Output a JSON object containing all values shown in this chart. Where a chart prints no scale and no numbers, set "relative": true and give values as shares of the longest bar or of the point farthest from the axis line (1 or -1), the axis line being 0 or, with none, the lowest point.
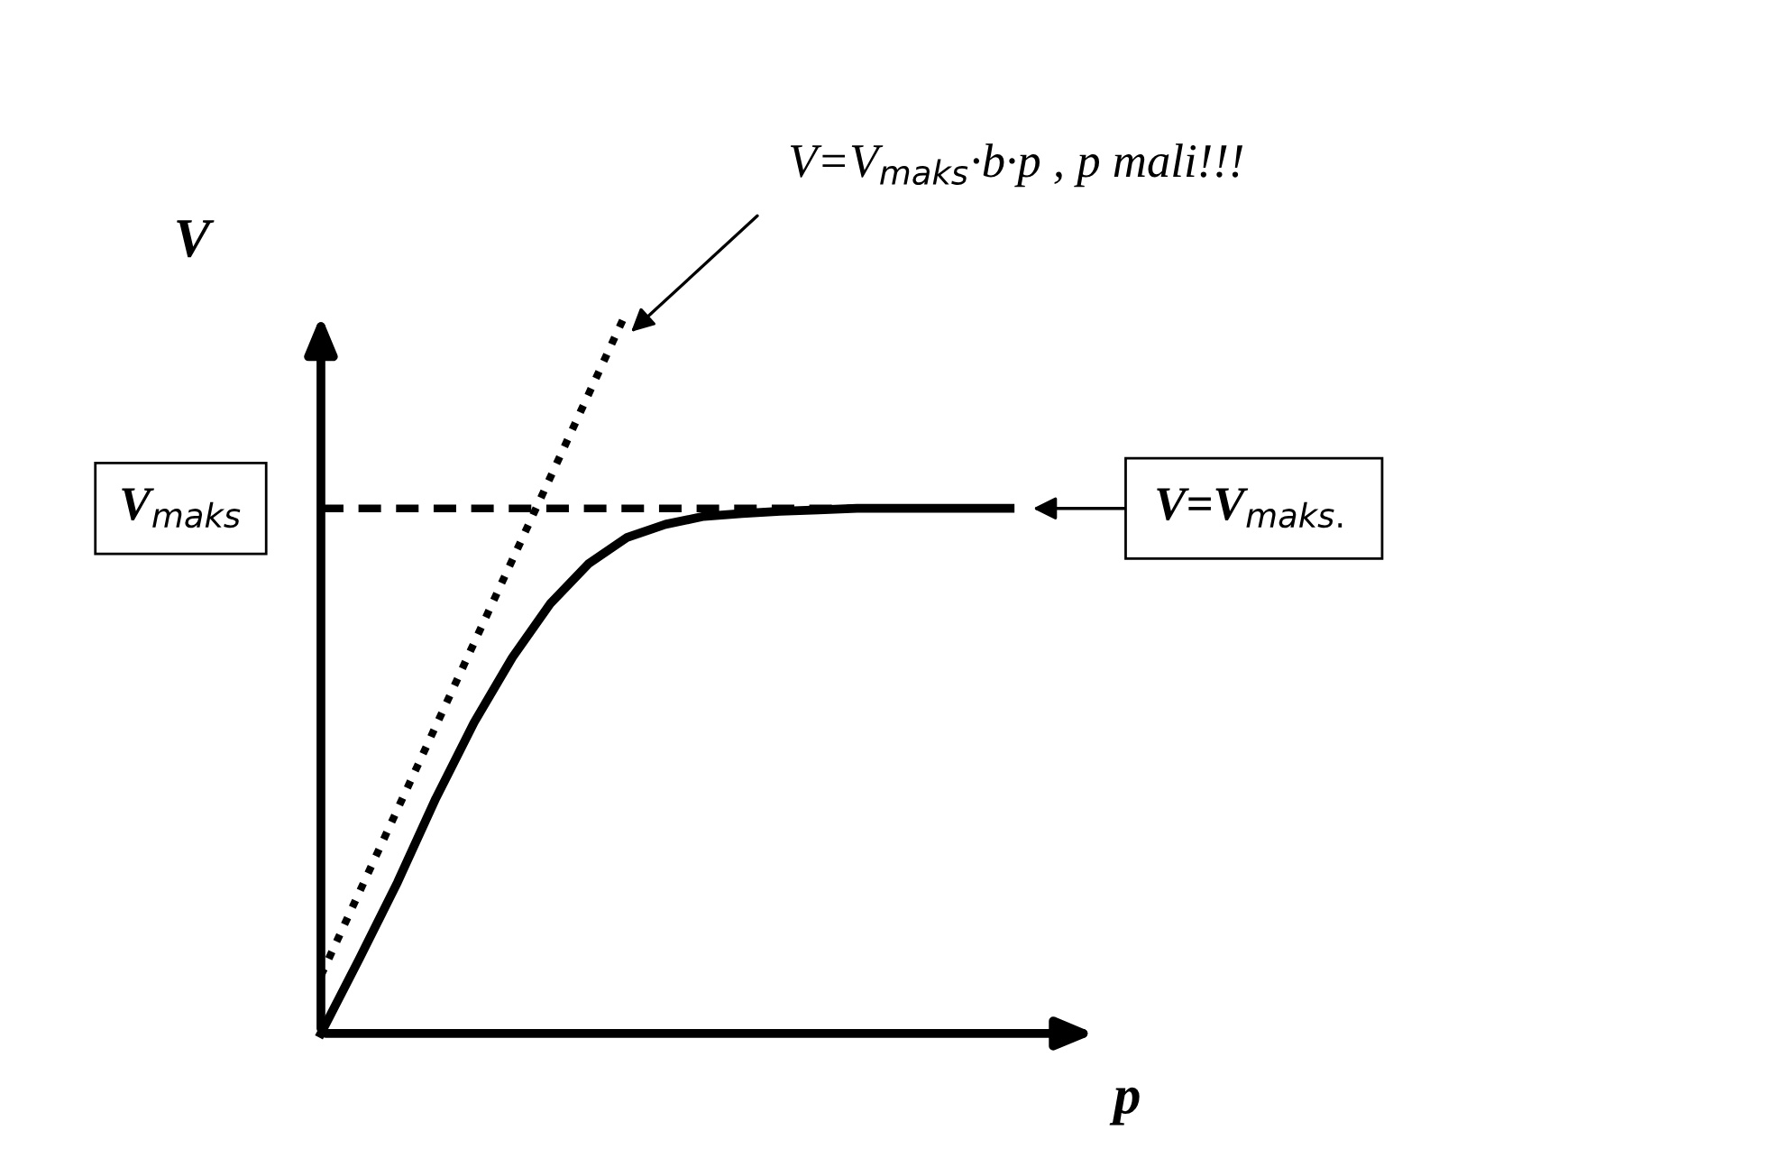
{
  "chart_data": {
    "type": "line",
    "relative": true,
    "xlabel": "p",
    "ylabel": "V",
    "categories": [
      null,
      null,
      null,
      null,
      null,
      null,
      null,
      null,
      null,
      null,
      null,
      null,
      null,
      null,
      null,
      null,
      null,
      null,
      null
    ],
    "series": [
      {
        "values": [
          0,
          0.103,
          0.209,
          0.325,
          0.43,
          0.52,
          0.595,
          0.65,
          0.686,
          0.704,
          0.715,
          0.719,
          0.722,
          0.724,
          0.726,
          0.726,
          0.726,
          0.726,
          0.726
        ],
        "color": "#000000",
        "line_style": "solid"
      },
      {
        "values": [
          0.08,
          0.195,
          0.31,
          0.425,
          0.54,
          0.655,
          0.77,
          0.885,
          1,
          null,
          null,
          null,
          null,
          null,
          null,
          null,
          null,
          null,
          null
        ],
        "color": "#000000",
        "line_style": "dotted"
      }
    ],
    "ref_lines": [
      {
        "axis": "y",
        "value": 0.726,
        "label": "V$_{maks}$",
        "color": "#000000",
        "line_style": "dashed"
      }
    ],
    "annotations": [
      "V=V$_{maks}$·b·p , p mali!!!",
      "V=V$_{maks.}$"
    ]
  }
}
